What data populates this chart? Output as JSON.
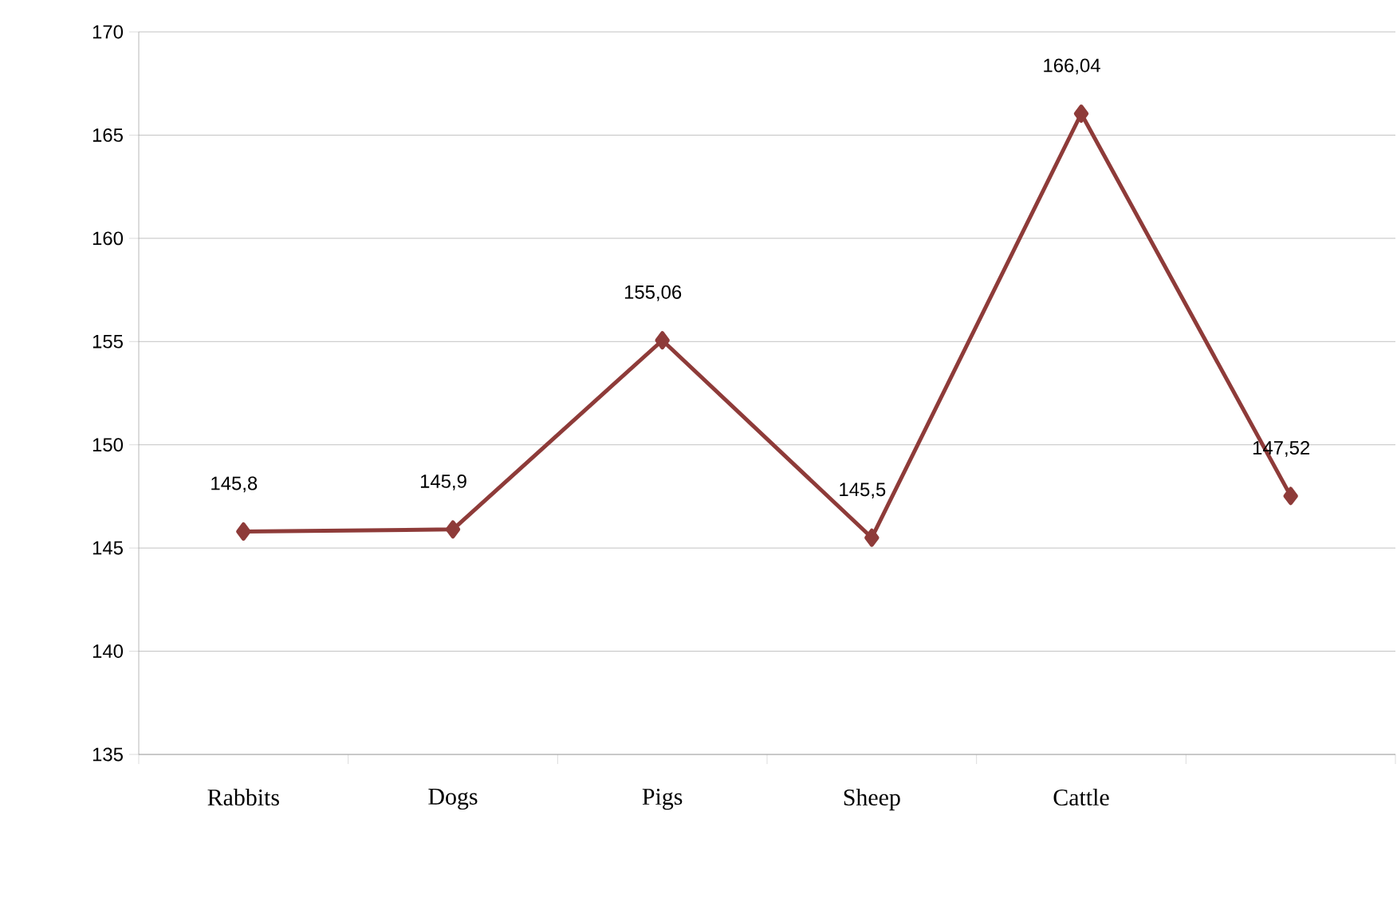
{
  "chart_data": {
    "type": "line",
    "categories": [
      "Rabbits",
      "Dogs",
      "Pigs",
      "Sheep",
      "Cattle",
      null
    ],
    "series": [
      {
        "color": "#8e3b39",
        "values": [
          145.8,
          145.9,
          155.06,
          145.5,
          166.04,
          147.52
        ],
        "value_labels": [
          "145,8",
          "145,9",
          "155,06",
          "145,5",
          "166,04",
          "147,52"
        ]
      }
    ],
    "ylim": [
      135,
      170
    ],
    "yticks": [
      135,
      140,
      145,
      150,
      155,
      160,
      165,
      170
    ],
    "grid": "y",
    "marker": "diamond",
    "line_style": "solid"
  }
}
